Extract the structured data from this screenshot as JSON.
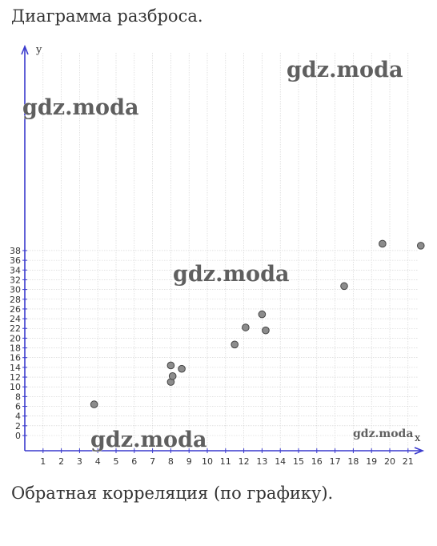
{
  "page": {
    "heading": "Диаграмма разброса.",
    "footnote": "Обратная корреляция (по графику)."
  },
  "watermarks": [
    "gdz.moda",
    "gdz.moda",
    "gdz.moda",
    "gdz.moda",
    "gdz.moda"
  ],
  "colors": {
    "axis": "#3a3acd",
    "point_fill": "#8c8c8c",
    "point_stroke": "#444444",
    "grid": "#cfcfcf"
  },
  "chart_data": {
    "type": "scatter",
    "xlabel": "x",
    "ylabel": "y",
    "xlim": [
      0,
      22
    ],
    "ylim": [
      -1.5,
      40
    ],
    "x_ticks": [
      1,
      2,
      3,
      4,
      5,
      6,
      7,
      8,
      9,
      10,
      11,
      12,
      13,
      14,
      15,
      16,
      17,
      18,
      19,
      20,
      21
    ],
    "y_ticks": [
      0,
      2,
      4,
      6,
      8,
      10,
      12,
      14,
      16,
      18,
      20,
      22,
      24,
      26,
      28,
      30,
      32,
      34,
      36,
      38
    ],
    "grid": true,
    "points": [
      {
        "x": 3.8,
        "y": 6.4
      },
      {
        "x": 8.0,
        "y": 11.0
      },
      {
        "x": 8.1,
        "y": 12.2
      },
      {
        "x": 8.0,
        "y": 14.4
      },
      {
        "x": 8.6,
        "y": 13.7
      },
      {
        "x": 11.5,
        "y": 18.7
      },
      {
        "x": 12.1,
        "y": 22.2
      },
      {
        "x": 13.0,
        "y": 24.9
      },
      {
        "x": 13.2,
        "y": 21.6
      },
      {
        "x": 17.5,
        "y": 30.7
      },
      {
        "x": 19.6,
        "y": 39.4
      },
      {
        "x": 21.7,
        "y": 39.0
      }
    ]
  }
}
